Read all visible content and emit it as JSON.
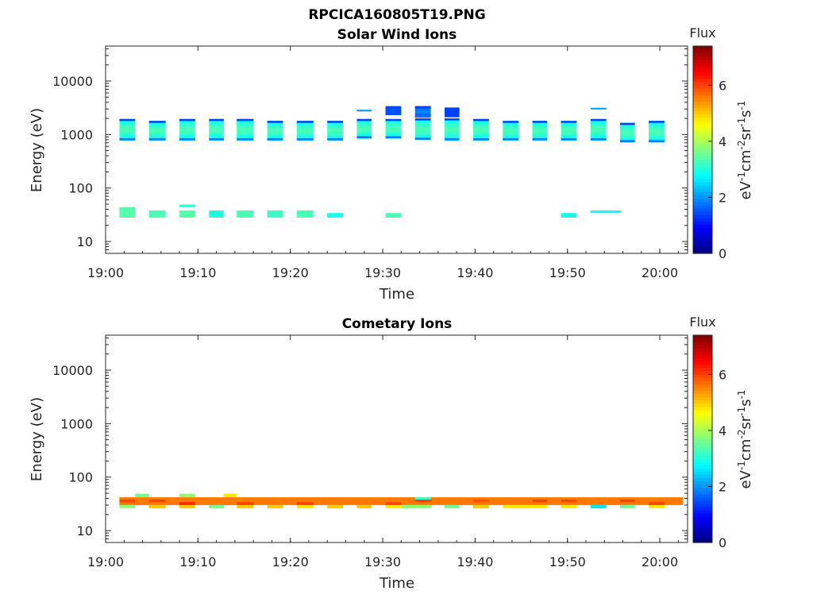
{
  "figure_title": "RPCICA160805T19.PNG",
  "colorbar": {
    "title": "Flux",
    "range": [
      0,
      7.4
    ],
    "ticks": [
      "0",
      "2",
      "4",
      "6"
    ],
    "tick_values": [
      0,
      2,
      4,
      6
    ],
    "colormap": "jet"
  },
  "chart_data": [
    {
      "type": "heatmap",
      "title": "Solar Wind Ions",
      "xlabel": "Time",
      "ylabel": "Energy (eV)",
      "y_scale": "log",
      "ylim": [
        6,
        45000
      ],
      "xlim": [
        "19:00",
        "20:03"
      ],
      "x_tick_labels": [
        "19:00",
        "19:10",
        "19:20",
        "19:30",
        "19:40",
        "19:50",
        "20:00"
      ],
      "y_tick_labels": [
        "10",
        "100",
        "1000",
        "10000"
      ],
      "colorbar_label": "eV-1cm-2sr-1s-1",
      "cells": [
        {
          "t0": "19:01.5",
          "t1": "19:03.2",
          "e0": 780,
          "e1": 1950,
          "flux": 3.0
        },
        {
          "t0": "19:04.7",
          "t1": "19:06.5",
          "e0": 780,
          "e1": 1800,
          "flux": 3.0
        },
        {
          "t0": "19:08.0",
          "t1": "19:09.7",
          "e0": 780,
          "e1": 1950,
          "flux": 3.0
        },
        {
          "t0": "19:11.2",
          "t1": "19:12.8",
          "e0": 780,
          "e1": 1950,
          "flux": 3.0
        },
        {
          "t0": "19:14.2",
          "t1": "19:16.0",
          "e0": 780,
          "e1": 1950,
          "flux": 3.0
        },
        {
          "t0": "19:17.5",
          "t1": "19:19.2",
          "e0": 780,
          "e1": 1800,
          "flux": 3.0
        },
        {
          "t0": "19:20.7",
          "t1": "19:22.5",
          "e0": 780,
          "e1": 1800,
          "flux": 3.0
        },
        {
          "t0": "19:24.0",
          "t1": "19:25.7",
          "e0": 780,
          "e1": 1800,
          "flux": 3.0
        },
        {
          "t0": "19:27.2",
          "t1": "19:28.8",
          "e0": 850,
          "e1": 1950,
          "flux": 3.0
        },
        {
          "t0": "19:27.2",
          "t1": "19:28.8",
          "e0": 2700,
          "e1": 2900,
          "flux": 2.0
        },
        {
          "t0": "19:30.3",
          "t1": "19:32.0",
          "e0": 850,
          "e1": 1950,
          "flux": 3.0
        },
        {
          "t0": "19:30.3",
          "t1": "19:32.0",
          "e0": 2300,
          "e1": 3400,
          "flux": 1.5
        },
        {
          "t0": "19:33.5",
          "t1": "19:35.2",
          "e0": 800,
          "e1": 2000,
          "flux": 3.0
        },
        {
          "t0": "19:33.5",
          "t1": "19:35.2",
          "e0": 2100,
          "e1": 3400,
          "flux": 1.6
        },
        {
          "t0": "19:36.7",
          "t1": "19:38.3",
          "e0": 780,
          "e1": 2000,
          "flux": 3.0
        },
        {
          "t0": "19:36.7",
          "t1": "19:38.3",
          "e0": 2100,
          "e1": 3200,
          "flux": 1.4
        },
        {
          "t0": "19:39.8",
          "t1": "19:41.5",
          "e0": 780,
          "e1": 1950,
          "flux": 3.0
        },
        {
          "t0": "19:43.0",
          "t1": "19:44.7",
          "e0": 780,
          "e1": 1800,
          "flux": 3.0
        },
        {
          "t0": "19:46.2",
          "t1": "19:47.8",
          "e0": 780,
          "e1": 1800,
          "flux": 3.0
        },
        {
          "t0": "19:49.3",
          "t1": "19:51.0",
          "e0": 780,
          "e1": 1800,
          "flux": 3.0
        },
        {
          "t0": "19:52.5",
          "t1": "19:54.2",
          "e0": 780,
          "e1": 1950,
          "flux": 3.0
        },
        {
          "t0": "19:52.5",
          "t1": "19:54.2",
          "e0": 2950,
          "e1": 3150,
          "flux": 2.0
        },
        {
          "t0": "19:55.7",
          "t1": "19:57.3",
          "e0": 720,
          "e1": 1650,
          "flux": 3.0
        },
        {
          "t0": "19:58.8",
          "t1": "20:00.5",
          "e0": 720,
          "e1": 1800,
          "flux": 3.0
        },
        {
          "t0": "19:01.5",
          "t1": "19:03.2",
          "e0": 28,
          "e1": 44,
          "flux": 3.4
        },
        {
          "t0": "19:04.7",
          "t1": "19:06.5",
          "e0": 28,
          "e1": 38,
          "flux": 3.3
        },
        {
          "t0": "19:08.0",
          "t1": "19:09.7",
          "e0": 28,
          "e1": 38,
          "flux": 3.4
        },
        {
          "t0": "19:08.0",
          "t1": "19:09.7",
          "e0": 44,
          "e1": 49,
          "flux": 3.1
        },
        {
          "t0": "19:11.2",
          "t1": "19:12.8",
          "e0": 28,
          "e1": 38,
          "flux": 3.0
        },
        {
          "t0": "19:14.2",
          "t1": "19:16.0",
          "e0": 28,
          "e1": 38,
          "flux": 3.3
        },
        {
          "t0": "19:17.5",
          "t1": "19:19.2",
          "e0": 28,
          "e1": 38,
          "flux": 3.2
        },
        {
          "t0": "19:20.7",
          "t1": "19:22.5",
          "e0": 28,
          "e1": 38,
          "flux": 3.3
        },
        {
          "t0": "19:24.0",
          "t1": "19:25.7",
          "e0": 28,
          "e1": 34,
          "flux": 2.9
        },
        {
          "t0": "19:30.3",
          "t1": "19:32.0",
          "e0": 28,
          "e1": 34,
          "flux": 3.3
        },
        {
          "t0": "19:49.3",
          "t1": "19:51.0",
          "e0": 28,
          "e1": 34,
          "flux": 2.9
        },
        {
          "t0": "19:52.5",
          "t1": "19:55.8",
          "e0": 34,
          "e1": 38,
          "flux": 2.9
        }
      ]
    },
    {
      "type": "heatmap",
      "title": "Cometary Ions",
      "xlabel": "Time",
      "ylabel": "Energy (eV)",
      "y_scale": "log",
      "ylim": [
        6,
        45000
      ],
      "xlim": [
        "19:00",
        "20:03"
      ],
      "x_tick_labels": [
        "19:00",
        "19:10",
        "19:20",
        "19:30",
        "19:40",
        "19:50",
        "20:00"
      ],
      "y_tick_labels": [
        "10",
        "100",
        "1000",
        "10000"
      ],
      "colorbar_label": "eV-1cm-2sr-1s-1",
      "band": {
        "start": "19:01.5",
        "end": "20:02.5",
        "e0": 30,
        "e1": 42,
        "flux": 5.6
      },
      "cells": [
        {
          "t0": "19:01.5",
          "t1": "19:03.2",
          "e0": 34,
          "e1": 38,
          "flux": 6.0
        },
        {
          "t0": "19:04.7",
          "t1": "19:06.5",
          "e0": 34,
          "e1": 38,
          "flux": 6.0
        },
        {
          "t0": "19:08.0",
          "t1": "19:09.7",
          "e0": 30,
          "e1": 34,
          "flux": 6.2
        },
        {
          "t0": "19:14.2",
          "t1": "19:16.0",
          "e0": 30,
          "e1": 34,
          "flux": 6.0
        },
        {
          "t0": "19:20.7",
          "t1": "19:22.5",
          "e0": 30,
          "e1": 34,
          "flux": 6.0
        },
        {
          "t0": "19:30.3",
          "t1": "19:32.0",
          "e0": 30,
          "e1": 34,
          "flux": 6.0
        },
        {
          "t0": "19:33.5",
          "t1": "19:35.2",
          "e0": 34,
          "e1": 38,
          "flux": 6.0
        },
        {
          "t0": "19:39.8",
          "t1": "19:41.5",
          "e0": 34,
          "e1": 38,
          "flux": 5.9
        },
        {
          "t0": "19:46.2",
          "t1": "19:47.8",
          "e0": 34,
          "e1": 38,
          "flux": 6.0
        },
        {
          "t0": "19:49.3",
          "t1": "19:51.0",
          "e0": 34,
          "e1": 38,
          "flux": 6.0
        },
        {
          "t0": "19:55.7",
          "t1": "19:57.3",
          "e0": 34,
          "e1": 38,
          "flux": 6.0
        },
        {
          "t0": "19:58.8",
          "t1": "20:00.5",
          "e0": 30,
          "e1": 34,
          "flux": 6.0
        },
        {
          "t0": "19:01.5",
          "t1": "19:03.2",
          "e0": 26,
          "e1": 30,
          "flux": 3.8
        },
        {
          "t0": "19:03.2",
          "t1": "19:04.7",
          "e0": 42,
          "e1": 49,
          "flux": 3.6
        },
        {
          "t0": "19:04.7",
          "t1": "19:06.5",
          "e0": 26,
          "e1": 30,
          "flux": 5.0
        },
        {
          "t0": "19:08.0",
          "t1": "19:09.7",
          "e0": 26,
          "e1": 30,
          "flux": 5.0
        },
        {
          "t0": "19:08.0",
          "t1": "19:09.7",
          "e0": 42,
          "e1": 49,
          "flux": 3.8
        },
        {
          "t0": "19:11.2",
          "t1": "19:12.8",
          "e0": 26,
          "e1": 30,
          "flux": 3.6
        },
        {
          "t0": "19:12.8",
          "t1": "19:14.2",
          "e0": 42,
          "e1": 49,
          "flux": 4.8
        },
        {
          "t0": "19:14.2",
          "t1": "19:16.0",
          "e0": 26,
          "e1": 30,
          "flux": 5.0
        },
        {
          "t0": "19:17.5",
          "t1": "19:19.2",
          "e0": 26,
          "e1": 30,
          "flux": 5.0
        },
        {
          "t0": "19:20.7",
          "t1": "19:22.5",
          "e0": 26,
          "e1": 30,
          "flux": 4.8
        },
        {
          "t0": "19:24.0",
          "t1": "19:25.7",
          "e0": 26,
          "e1": 30,
          "flux": 5.0
        },
        {
          "t0": "19:27.2",
          "t1": "19:28.8",
          "e0": 26,
          "e1": 30,
          "flux": 5.0
        },
        {
          "t0": "19:30.3",
          "t1": "19:32.0",
          "e0": 26,
          "e1": 30,
          "flux": 4.8
        },
        {
          "t0": "19:32.0",
          "t1": "19:35.2",
          "e0": 26,
          "e1": 30,
          "flux": 3.8
        },
        {
          "t0": "19:33.5",
          "t1": "19:35.2",
          "e0": 38,
          "e1": 42,
          "flux": 3.2
        },
        {
          "t0": "19:36.7",
          "t1": "19:38.3",
          "e0": 26,
          "e1": 30,
          "flux": 3.6
        },
        {
          "t0": "19:39.8",
          "t1": "19:41.5",
          "e0": 26,
          "e1": 30,
          "flux": 5.0
        },
        {
          "t0": "19:43.0",
          "t1": "19:47.8",
          "e0": 26,
          "e1": 30,
          "flux": 4.8
        },
        {
          "t0": "19:49.3",
          "t1": "19:51.0",
          "e0": 26,
          "e1": 30,
          "flux": 4.8
        },
        {
          "t0": "19:52.5",
          "t1": "19:54.2",
          "e0": 26,
          "e1": 30,
          "flux": 2.6
        },
        {
          "t0": "19:55.7",
          "t1": "19:57.3",
          "e0": 26,
          "e1": 30,
          "flux": 3.6
        },
        {
          "t0": "19:58.8",
          "t1": "20:00.5",
          "e0": 26,
          "e1": 30,
          "flux": 4.8
        }
      ]
    }
  ]
}
